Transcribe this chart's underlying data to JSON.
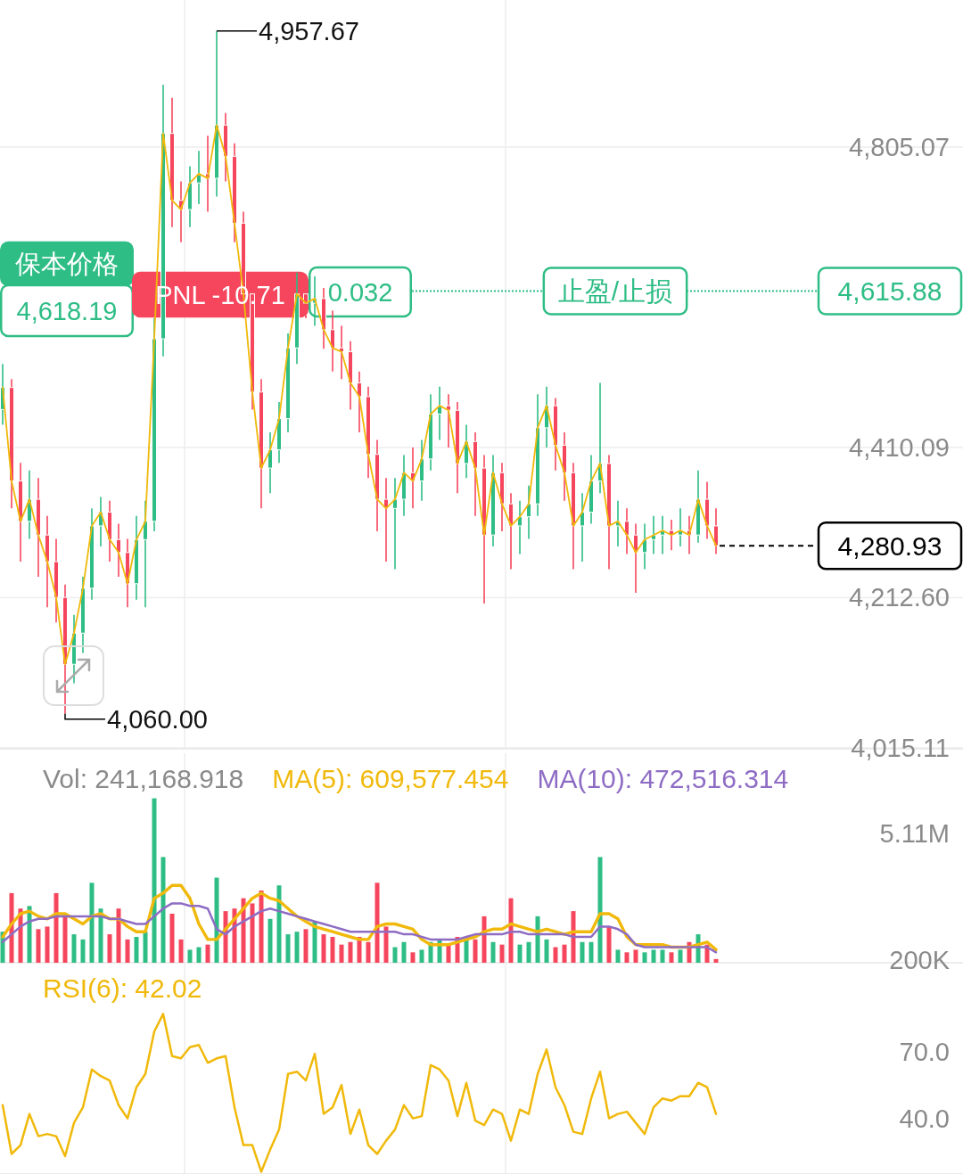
{
  "chart_data": [
    {
      "type": "candlestick",
      "categories": [
        null,
        null,
        null,
        null,
        null,
        null,
        null,
        null,
        null,
        null,
        null,
        null,
        null,
        null,
        null,
        null,
        null,
        null,
        null,
        null,
        null,
        null,
        null,
        null,
        null,
        null,
        null,
        null,
        null,
        null,
        null,
        null,
        null,
        null,
        null,
        null,
        null,
        null,
        null,
        null,
        null,
        null,
        null,
        null,
        null,
        null,
        null,
        null,
        null,
        null,
        null,
        null,
        null,
        null,
        null,
        null,
        null,
        null,
        null,
        null,
        null,
        null,
        null,
        null,
        null,
        null,
        null,
        null,
        null,
        null,
        null,
        null,
        null,
        null,
        null,
        null,
        null,
        null,
        null,
        null,
        null
      ],
      "ohlc": [
        [
          4460,
          4520,
          4440,
          4489
        ],
        [
          4489,
          4500,
          4330,
          4366
        ],
        [
          4366,
          4390,
          4260,
          4313
        ],
        [
          4313,
          4380,
          4290,
          4342
        ],
        [
          4342,
          4370,
          4240,
          4295
        ],
        [
          4295,
          4320,
          4200,
          4260
        ],
        [
          4260,
          4290,
          4180,
          4213
        ],
        [
          4213,
          4230,
          4060.0,
          4125
        ],
        [
          4125,
          4190,
          4100,
          4166
        ],
        [
          4166,
          4240,
          4140,
          4225
        ],
        [
          4225,
          4330,
          4210,
          4307
        ],
        [
          4307,
          4345,
          4280,
          4325
        ],
        [
          4325,
          4340,
          4260,
          4289
        ],
        [
          4289,
          4310,
          4240,
          4272
        ],
        [
          4272,
          4290,
          4200,
          4231
        ],
        [
          4231,
          4320,
          4210,
          4289
        ],
        [
          4289,
          4340,
          4200,
          4313
        ],
        [
          4313,
          4580,
          4300,
          4553
        ],
        [
          4553,
          4887,
          4530,
          4823
        ],
        [
          4823,
          4870,
          4700,
          4735
        ],
        [
          4735,
          4760,
          4680,
          4723
        ],
        [
          4723,
          4780,
          4700,
          4758
        ],
        [
          4758,
          4800,
          4730,
          4770
        ],
        [
          4770,
          4820,
          4720,
          4764
        ],
        [
          4764,
          4957.67,
          4740,
          4834
        ],
        [
          4834,
          4850,
          4760,
          4793
        ],
        [
          4793,
          4810,
          4680,
          4705
        ],
        [
          4705,
          4720,
          4580,
          4612
        ],
        [
          4612,
          4640,
          4460,
          4483
        ],
        [
          4483,
          4500,
          4330,
          4383
        ],
        [
          4383,
          4430,
          4350,
          4407
        ],
        [
          4407,
          4470,
          4390,
          4448
        ],
        [
          4448,
          4560,
          4430,
          4541
        ],
        [
          4541,
          4640,
          4520,
          4612
        ],
        [
          4612,
          4630,
          4580,
          4600
        ],
        [
          4600,
          4635,
          4570,
          4606
        ],
        [
          4606,
          4620,
          4540,
          4565
        ],
        [
          4565,
          4590,
          4510,
          4541
        ],
        [
          4541,
          4570,
          4500,
          4536
        ],
        [
          4536,
          4550,
          4460,
          4495
        ],
        [
          4495,
          4510,
          4430,
          4477
        ],
        [
          4477,
          4490,
          4370,
          4401
        ],
        [
          4401,
          4420,
          4300,
          4342
        ],
        [
          4342,
          4370,
          4260,
          4330
        ],
        [
          4330,
          4370,
          4250,
          4342
        ],
        [
          4342,
          4400,
          4320,
          4377
        ],
        [
          4377,
          4410,
          4330,
          4366
        ],
        [
          4366,
          4420,
          4340,
          4395
        ],
        [
          4395,
          4480,
          4380,
          4454
        ],
        [
          4454,
          4490,
          4420,
          4465
        ],
        [
          4465,
          4480,
          4410,
          4459
        ],
        [
          4459,
          4470,
          4350,
          4389
        ],
        [
          4389,
          4440,
          4370,
          4418
        ],
        [
          4418,
          4430,
          4320,
          4383
        ],
        [
          4383,
          4400,
          4205,
          4295
        ],
        [
          4295,
          4400,
          4280,
          4377
        ],
        [
          4377,
          4390,
          4300,
          4336
        ],
        [
          4336,
          4350,
          4250,
          4307
        ],
        [
          4307,
          4340,
          4270,
          4319
        ],
        [
          4319,
          4360,
          4290,
          4336
        ],
        [
          4336,
          4480,
          4320,
          4436
        ],
        [
          4436,
          4490,
          4410,
          4465
        ],
        [
          4465,
          4475,
          4380,
          4413
        ],
        [
          4413,
          4430,
          4340,
          4377
        ],
        [
          4377,
          4390,
          4250,
          4307
        ],
        [
          4307,
          4350,
          4260,
          4325
        ],
        [
          4325,
          4400,
          4310,
          4366
        ],
        [
          4366,
          4495,
          4350,
          4389
        ],
        [
          4389,
          4400,
          4250,
          4307
        ],
        [
          4307,
          4340,
          4280,
          4313
        ],
        [
          4313,
          4330,
          4270,
          4295
        ],
        [
          4295,
          4310,
          4219,
          4272
        ],
        [
          4272,
          4310,
          4250,
          4289
        ],
        [
          4289,
          4320,
          4270,
          4295
        ],
        [
          4295,
          4320,
          4270,
          4301
        ],
        [
          4301,
          4315,
          4275,
          4295
        ],
        [
          4295,
          4330,
          4280,
          4301
        ],
        [
          4301,
          4320,
          4270,
          4295
        ],
        [
          4295,
          4380,
          4285,
          4342
        ],
        [
          4342,
          4365,
          4290,
          4307
        ],
        [
          4307,
          4330,
          4270,
          4280.93
        ]
      ],
      "colors": [
        "#2ebd85",
        "#f6465d",
        "#f6465d",
        "#2ebd85",
        "#f6465d",
        "#f6465d",
        "#f6465d",
        "#f6465d",
        "#2ebd85",
        "#2ebd85",
        "#2ebd85",
        "#2ebd85",
        "#f6465d",
        "#f6465d",
        "#f6465d",
        "#2ebd85",
        "#2ebd85",
        "#2ebd85",
        "#2ebd85",
        "#f6465d",
        "#f6465d",
        "#2ebd85",
        "#2ebd85",
        "#f6465d",
        "#2ebd85",
        "#f6465d",
        "#f6465d",
        "#f6465d",
        "#f6465d",
        "#f6465d",
        "#2ebd85",
        "#2ebd85",
        "#2ebd85",
        "#2ebd85",
        "#f6465d",
        "#2ebd85",
        "#f6465d",
        "#f6465d",
        "#f6465d",
        "#f6465d",
        "#f6465d",
        "#f6465d",
        "#f6465d",
        "#f6465d",
        "#2ebd85",
        "#2ebd85",
        "#f6465d",
        "#2ebd85",
        "#2ebd85",
        "#2ebd85",
        "#f6465d",
        "#f6465d",
        "#2ebd85",
        "#f6465d",
        "#f6465d",
        "#2ebd85",
        "#f6465d",
        "#f6465d",
        "#2ebd85",
        "#2ebd85",
        "#2ebd85",
        "#2ebd85",
        "#f6465d",
        "#f6465d",
        "#f6465d",
        "#2ebd85",
        "#2ebd85",
        "#2ebd85",
        "#f6465d",
        "#2ebd85",
        "#f6465d",
        "#f6465d",
        "#2ebd85",
        "#2ebd85",
        "#2ebd85",
        "#f6465d",
        "#2ebd85",
        "#f6465d",
        "#2ebd85",
        "#f6465d",
        "#f6465d"
      ],
      "series": [
        {
          "type": "line",
          "color": "#f0b90b",
          "values": [
            4489,
            4366,
            4313,
            4342,
            4295,
            4260,
            4213,
            4125,
            4166,
            4225,
            4307,
            4325,
            4289,
            4272,
            4231,
            4289,
            4313,
            4553,
            4823,
            4735,
            4723,
            4758,
            4770,
            4764,
            4834,
            4793,
            4705,
            4612,
            4483,
            4383,
            4407,
            4448,
            4541,
            4612,
            4600,
            4606,
            4565,
            4541,
            4536,
            4495,
            4477,
            4401,
            4342,
            4330,
            4342,
            4377,
            4366,
            4395,
            4454,
            4465,
            4459,
            4389,
            4418,
            4383,
            4295,
            4377,
            4336,
            4307,
            4319,
            4336,
            4436,
            4465,
            4413,
            4377,
            4307,
            4325,
            4366,
            4389,
            4307,
            4313,
            4295,
            4272,
            4289,
            4295,
            4301,
            4295,
            4301,
            4295,
            4342,
            4307,
            4281
          ]
        }
      ],
      "ylim": [
        4013.9,
        4998.5
      ],
      "yticks": [
        {
          "value": 4805.07,
          "label": "4,805.07"
        },
        {
          "value": 4410.09,
          "label": "4,410.09"
        },
        {
          "value": 4212.6,
          "label": "4,212.60"
        },
        {
          "value": 4015.11,
          "label": "4,015.11"
        }
      ],
      "tick_labels": "y",
      "grid": true,
      "ref_lines": [
        {
          "axis": "y",
          "value": 4615.88,
          "label": "止盈/止损",
          "color": "#2ebd85",
          "line_style": "dotted"
        },
        {
          "axis": "y",
          "value": 4280.93,
          "label": "4,280.93",
          "color": "#000000",
          "line_style": "dashed"
        }
      ],
      "annotations": [
        "保本价格",
        "4,618.19",
        "PNL -10.71",
        "0.032",
        "4,615.88",
        "4,957.67",
        "4,060.00"
      ]
    },
    {
      "type": "bar",
      "categories": [
        null,
        null,
        null,
        null,
        null,
        null,
        null,
        null,
        null,
        null,
        null,
        null,
        null,
        null,
        null,
        null,
        null,
        null,
        null,
        null,
        null,
        null,
        null,
        null,
        null,
        null,
        null,
        null,
        null,
        null,
        null,
        null,
        null,
        null,
        null,
        null,
        null,
        null,
        null,
        null,
        null,
        null,
        null,
        null,
        null,
        null,
        null,
        null,
        null,
        null,
        null,
        null,
        null,
        null,
        null,
        null,
        null,
        null,
        null,
        null,
        null,
        null,
        null,
        null,
        null,
        null,
        null,
        null,
        null,
        null,
        null,
        null,
        null,
        null,
        null,
        null,
        null,
        null,
        null,
        null,
        null
      ],
      "series": [
        {
          "type": "bar",
          "colors": [
            "#2ebd85",
            "#f6465d",
            "#f6465d",
            "#2ebd85",
            "#f6465d",
            "#f6465d",
            "#f6465d",
            "#f6465d",
            "#2ebd85",
            "#2ebd85",
            "#2ebd85",
            "#2ebd85",
            "#f6465d",
            "#f6465d",
            "#f6465d",
            "#2ebd85",
            "#2ebd85",
            "#2ebd85",
            "#2ebd85",
            "#f6465d",
            "#f6465d",
            "#2ebd85",
            "#2ebd85",
            "#f6465d",
            "#2ebd85",
            "#f6465d",
            "#f6465d",
            "#f6465d",
            "#f6465d",
            "#f6465d",
            "#2ebd85",
            "#2ebd85",
            "#2ebd85",
            "#2ebd85",
            "#f6465d",
            "#2ebd85",
            "#f6465d",
            "#f6465d",
            "#f6465d",
            "#f6465d",
            "#f6465d",
            "#f6465d",
            "#f6465d",
            "#f6465d",
            "#2ebd85",
            "#2ebd85",
            "#f6465d",
            "#2ebd85",
            "#2ebd85",
            "#2ebd85",
            "#f6465d",
            "#f6465d",
            "#2ebd85",
            "#f6465d",
            "#f6465d",
            "#2ebd85",
            "#f6465d",
            "#f6465d",
            "#2ebd85",
            "#2ebd85",
            "#2ebd85",
            "#2ebd85",
            "#f6465d",
            "#f6465d",
            "#f6465d",
            "#2ebd85",
            "#2ebd85",
            "#2ebd85",
            "#f6465d",
            "#2ebd85",
            "#f6465d",
            "#f6465d",
            "#2ebd85",
            "#2ebd85",
            "#2ebd85",
            "#f6465d",
            "#2ebd85",
            "#f6465d",
            "#2ebd85",
            "#f6465d",
            "#f6465d"
          ],
          "values": [
            1300000,
            2800000,
            2200000,
            2300000,
            1400000,
            1500000,
            2800000,
            2000000,
            1200000,
            1000000,
            3200000,
            2200000,
            1200000,
            2200000,
            1000000,
            1100000,
            1300000,
            6480000,
            4200000,
            2000000,
            1000000,
            600000,
            700000,
            800000,
            3400000,
            2100000,
            2200000,
            2600000,
            2400000,
            2900000,
            1800000,
            3100000,
            1200000,
            1300000,
            1400000,
            1700000,
            1200000,
            1100000,
            800000,
            900000,
            1100000,
            900000,
            3200000,
            1500000,
            700000,
            900000,
            500000,
            600000,
            900000,
            1000000,
            800000,
            1100000,
            1000000,
            1000000,
            1900000,
            900000,
            800000,
            2600000,
            800000,
            900000,
            1900000,
            1000000,
            700000,
            800000,
            2100000,
            900000,
            900000,
            4200000,
            1500000,
            600000,
            500000,
            600000,
            500000,
            600000,
            600000,
            500000,
            600000,
            900000,
            1200000,
            800000,
            240000
          ]
        },
        {
          "type": "line",
          "name": "MA(5): 609,577.454",
          "color": "#f0b90b",
          "values": [
            1100000,
            1600000,
            2000000,
            2100000,
            1900000,
            1800000,
            2000000,
            2000000,
            1800000,
            1600000,
            1900000,
            2000000,
            1800000,
            1800000,
            1500000,
            1300000,
            1300000,
            2600000,
            2800000,
            3100000,
            3100000,
            2600000,
            1600000,
            1000000,
            1000000,
            1400000,
            1800000,
            2200000,
            2600000,
            2800000,
            2600000,
            2500000,
            2200000,
            1900000,
            1700000,
            1500000,
            1400000,
            1300000,
            1200000,
            1100000,
            1000000,
            1000000,
            1500000,
            1600000,
            1600000,
            1500000,
            1400000,
            1000000,
            800000,
            800000,
            800000,
            900000,
            1000000,
            1100000,
            1300000,
            1400000,
            1400000,
            1600000,
            1500000,
            1400000,
            1300000,
            1400000,
            1300000,
            1200000,
            1300000,
            1300000,
            1300000,
            2000000,
            2000000,
            1800000,
            1100000,
            800000,
            800000,
            800000,
            800000,
            700000,
            700000,
            700000,
            800000,
            900000,
            600000
          ]
        },
        {
          "type": "line",
          "name": "MA(10): 472,516.314",
          "color": "#8e6cc4",
          "values": [
            900000,
            1200000,
            1500000,
            1700000,
            1800000,
            1800000,
            1900000,
            1900000,
            1900000,
            1900000,
            1900000,
            1900000,
            1800000,
            1800000,
            1700000,
            1600000,
            1600000,
            1900000,
            2200000,
            2400000,
            2400000,
            2300000,
            2300000,
            2200000,
            1400000,
            1200000,
            1500000,
            1700000,
            1900000,
            2100000,
            2200000,
            2100000,
            2000000,
            1900000,
            1800000,
            1700000,
            1600000,
            1500000,
            1400000,
            1300000,
            1300000,
            1300000,
            1300000,
            1300000,
            1300000,
            1200000,
            1200000,
            1100000,
            1000000,
            1000000,
            1000000,
            1000000,
            1100000,
            1200000,
            1200000,
            1200000,
            1200000,
            1300000,
            1300000,
            1200000,
            1200000,
            1200000,
            1200000,
            1200000,
            1100000,
            1100000,
            1100000,
            1500000,
            1500000,
            1400000,
            1200000,
            800000,
            700000,
            700000,
            700000,
            700000,
            700000,
            700000,
            700000,
            700000,
            500000
          ]
        }
      ],
      "ylim": [
        96000,
        8230000
      ],
      "yticks": [
        {
          "value": 5110000,
          "label": "5.11M"
        },
        {
          "value": 200000,
          "label": "200K"
        }
      ],
      "tick_labels": "y",
      "grid": "x",
      "legend": "top",
      "annotations": [
        "Vol: 241,168.918"
      ]
    },
    {
      "type": "line",
      "categories": [
        null,
        null,
        null,
        null,
        null,
        null,
        null,
        null,
        null,
        null,
        null,
        null,
        null,
        null,
        null,
        null,
        null,
        null,
        null,
        null,
        null,
        null,
        null,
        null,
        null,
        null,
        null,
        null,
        null,
        null,
        null,
        null,
        null,
        null,
        null,
        null,
        null,
        null,
        null,
        null,
        null,
        null,
        null,
        null,
        null,
        null,
        null,
        null,
        null,
        null,
        null,
        null,
        null,
        null,
        null,
        null,
        null,
        null,
        null,
        null,
        null,
        null,
        null,
        null,
        null,
        null,
        null,
        null,
        null,
        null,
        null,
        null,
        null,
        null,
        null,
        null,
        null,
        null,
        null,
        null,
        null
      ],
      "series": [
        {
          "name": "RSI(6): 42.02",
          "color": "#f0b90b",
          "values": [
            46,
            24,
            28,
            42,
            32,
            33,
            32,
            23,
            38,
            45,
            62,
            59,
            57,
            46,
            40,
            54,
            60,
            79,
            87,
            68,
            67,
            72,
            73,
            65,
            67,
            68,
            45,
            28,
            28,
            16,
            26,
            35,
            60,
            61,
            57,
            69,
            42,
            45,
            55,
            33,
            44,
            28,
            24,
            30,
            35,
            46,
            40,
            41,
            64,
            62,
            57,
            41,
            56,
            39,
            37,
            44,
            42,
            30,
            44,
            42,
            60,
            71,
            54,
            46,
            34,
            33,
            49,
            61,
            40,
            42,
            43,
            38,
            33,
            45,
            49,
            48,
            50,
            50,
            56,
            54,
            42
          ]
        }
      ],
      "ylim": [
        15,
        110
      ],
      "yticks": [
        {
          "value": 70,
          "label": "70.0"
        },
        {
          "value": 40,
          "label": "40.0"
        }
      ],
      "tick_labels": "y",
      "grid": "x",
      "legend": "top left"
    }
  ]
}
